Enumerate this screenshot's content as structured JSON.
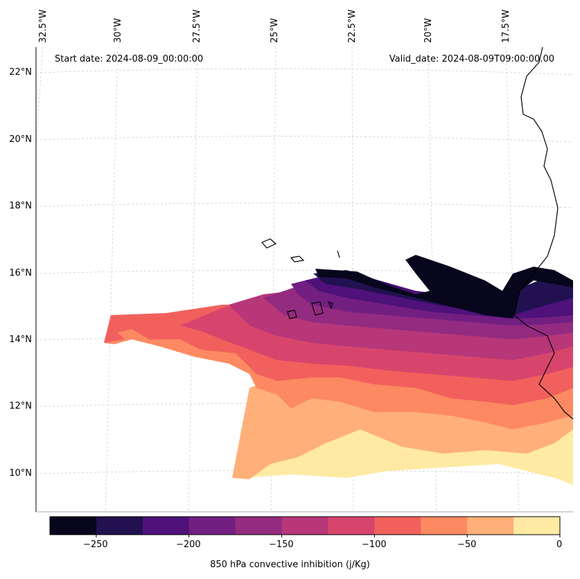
{
  "map": {
    "start_date": "Start date: 2024-08-09_00:00:00",
    "valid_date": "Valid_date: 2024-08-09T09:00:00.00",
    "lat_labels": [
      "22°N",
      "20°N",
      "18°N",
      "16°N",
      "14°N",
      "12°N",
      "10°N"
    ],
    "lon_labels": [
      "32.5°W",
      "30°W",
      "27.5°W",
      "25°W",
      "22.5°W",
      "20°W",
      "17.5°W"
    ]
  },
  "colorbar": {
    "label": "850 hPa convective inhibition (j/Kg)",
    "tick_labels": [
      "−250",
      "−200",
      "−150",
      "−100",
      "−50",
      "0"
    ],
    "levels": [
      -275,
      -250,
      -225,
      -200,
      -175,
      -150,
      -125,
      -100,
      -75,
      -50,
      -25,
      0
    ],
    "colors": [
      "#07061c",
      "#221150",
      "#4f117a",
      "#721f81",
      "#932b80",
      "#b73779",
      "#d8456c",
      "#f1605d",
      "#fc8961",
      "#feb078",
      "#feeaa3"
    ]
  }
}
